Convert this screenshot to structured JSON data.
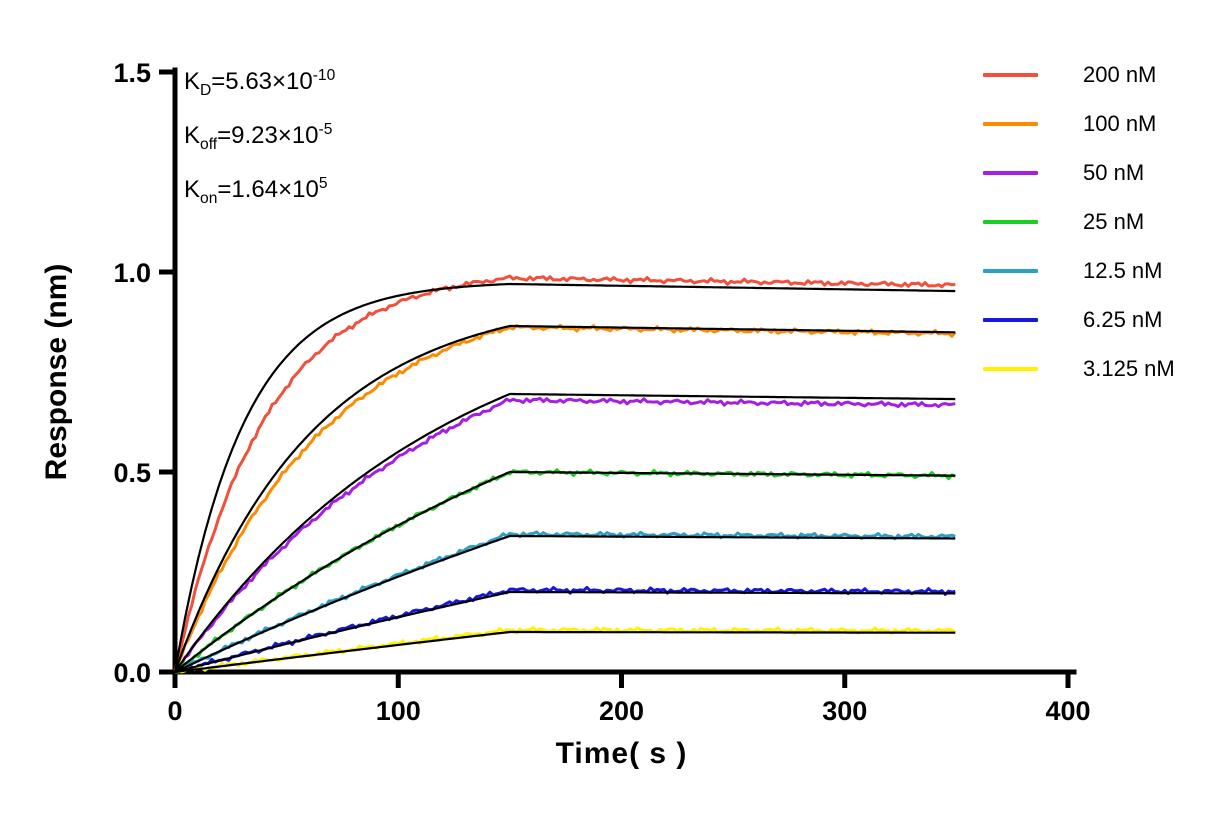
{
  "chart_data": {
    "type": "line",
    "title": "",
    "xlabel": "Time( s )",
    "ylabel": "Response (nm)",
    "xlim": [
      0,
      400
    ],
    "ylim": [
      0,
      1.5
    ],
    "xticks": [
      0,
      100,
      200,
      300,
      400
    ],
    "yticks": [
      "0.0",
      "0.5",
      "1.0",
      "1.5"
    ],
    "grid": false,
    "legend_position": "right",
    "association_end_s": 150,
    "dissociation_end_s": 350,
    "koff": 9.23e-05,
    "fit_color": "#000000",
    "series": [
      {
        "label": "200 nM",
        "color": "#F0503C",
        "r150_data": 0.985,
        "r150_fit": 0.97,
        "k_data": 0.0245,
        "k_fit": 0.0329
      },
      {
        "label": "100 nM",
        "color": "#FF8A00",
        "r150_data": 0.862,
        "r150_fit": 0.865,
        "k_data": 0.0148,
        "k_fit": 0.0165
      },
      {
        "label": "50 nM",
        "color": "#A61EE4",
        "r150_data": 0.68,
        "r150_fit": 0.695,
        "k_data": 0.008,
        "k_fit": 0.0083
      },
      {
        "label": "25 nM",
        "color": "#1CCE24",
        "r150_data": 0.5,
        "r150_fit": 0.5,
        "k_data": 0.0042,
        "k_fit": 0.0042
      },
      {
        "label": "12.5 nM",
        "color": "#2E9FC4",
        "r150_data": 0.345,
        "r150_fit": 0.34,
        "k_data": 0.0021,
        "k_fit": 0.0021
      },
      {
        "label": "6.25 nM",
        "color": "#1717DD",
        "r150_data": 0.205,
        "r150_fit": 0.2,
        "k_data": 0.0011,
        "k_fit": 0.0011
      },
      {
        "label": "3.125 nM",
        "color": "#FFF100",
        "r150_data": 0.105,
        "r150_fit": 0.1,
        "k_data": 0.0006,
        "k_fit": 0.0006
      }
    ]
  },
  "annotations": {
    "kd": {
      "prefix": "K",
      "sub": "D",
      "mid": "=5.63×10",
      "sup": "-10"
    },
    "koff": {
      "prefix": "K",
      "sub": "off",
      "mid": "=9.23×10",
      "sup": "-5"
    },
    "kon": {
      "prefix": "K",
      "sub": "on",
      "mid": "=1.64×10",
      "sup": "5"
    }
  }
}
